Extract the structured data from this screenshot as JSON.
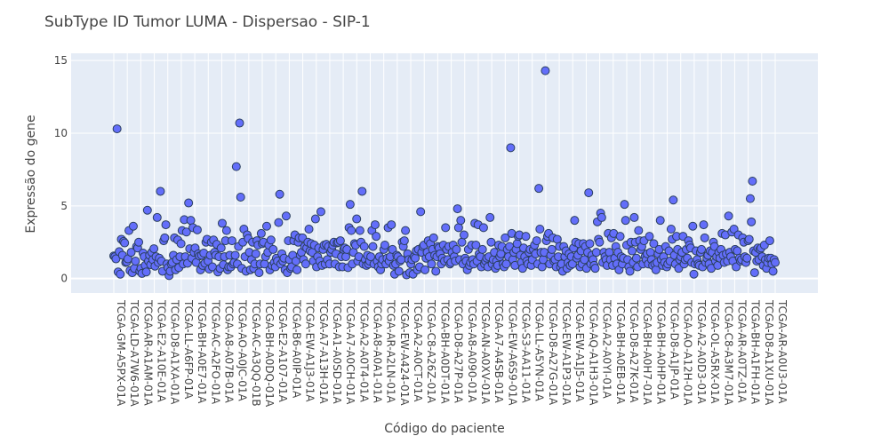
{
  "chart_data": {
    "type": "scatter",
    "title": "SubType ID Tumor LUMA - Dispersao - SIP-1",
    "xlabel": "Código do paciente",
    "ylabel": "Expressão do gene",
    "ylim": [
      -1,
      15.5
    ],
    "yticks": [
      0,
      5,
      10,
      15
    ],
    "grid": true,
    "legend": "none",
    "marker_color": "#636efa",
    "marker_edge": "#2a3f5f",
    "background": "#e5ecf6",
    "x_tick_labels": [
      "TCGA-GM-A5PX-01A",
      "TCGA-LD-A7W6-01A",
      "TCGA-AR-A1AM-01A",
      "TCGA-E2-A10E-01A",
      "TCGA-D8-A1XA-01A",
      "TCGA-LL-A6FP-01A",
      "TCGA-BH-A0E7-01A",
      "TCGA-AC-A2FO-01A",
      "TCGA-A8-A07B-01A",
      "TCGA-AO-A0JC-01A",
      "TCGA-AC-A3QQ-01B",
      "TCGA-BH-A0DQ-01A",
      "TCGA-E2-A107-01A",
      "TCGA-B6-A0IP-01A",
      "TCGA-EW-A1J3-01A",
      "TCGA-A7-A13H-01A",
      "TCGA-A1-A0SD-01A",
      "TCGA-A7-A0CH-01A",
      "TCGA-A2-A0T4-01A",
      "TCGA-A8-A0A1-01A",
      "TCGA-AR-A2LN-01A",
      "TCGA-EW-A424-01A",
      "TCGA-A2-A0CT-01A",
      "TCGA-C8-A26Z-01A",
      "TCGA-BH-A0DT-01A",
      "TCGA-D8-A27P-01A",
      "TCGA-A8-A090-01A",
      "TCGA-AN-A0XV-01A",
      "TCGA-A7-A4SB-01A",
      "TCGA-EW-A6S9-01A",
      "TCGA-S3-AA11-01A",
      "TCGA-LL-A5YN-01A",
      "TCGA-D8-A27G-01A",
      "TCGA-EW-A1P3-01A",
      "TCGA-EW-A1J5-01A",
      "TCGA-AQ-A1H3-01A",
      "TCGA-A2-A0YI-01A",
      "TCGA-BH-A0EB-01A",
      "TCGA-D8-A27K-01A",
      "TCGA-BH-A0H7-01A",
      "TCGA-BH-A0HP-01A",
      "TCGA-D8-A1JP-01A",
      "TCGA-AO-A12H-01A",
      "TCGA-A2-A0D3-01A",
      "TCGA-OL-A5RX-01A",
      "TCGA-C8-A3M7-01A",
      "TCGA-AR-A0TZ-01A",
      "TCGA-BH-A1FH-01A",
      "TCGA-D8-A1XU-01A",
      "TCGA-AR-A0U3-01A"
    ],
    "y": [
      1.55,
      1.5,
      1.35,
      10.3,
      0.45,
      1.85,
      0.3,
      2.7,
      1.6,
      2.55,
      2.45,
      1.1,
      1.15,
      1.35,
      3.3,
      0.55,
      1.8,
      0.4,
      3.6,
      0.7,
      1.2,
      2.2,
      2.1,
      2.5,
      0.5,
      0.7,
      0.35,
      1.75,
      1.5,
      0.9,
      0.45,
      4.7,
      1.2,
      1.6,
      0.95,
      1.8,
      1.3,
      2.05,
      0.85,
      1.5,
      4.2,
      1.1,
      1.4,
      6.0,
      1.2,
      0.5,
      2.6,
      2.8,
      3.7,
      1.0,
      0.75,
      0.2,
      0.5,
      1.0,
      1.1,
      1.6,
      2.8,
      0.6,
      1.3,
      2.65,
      0.75,
      1.5,
      2.4,
      3.3,
      1.0,
      4.05,
      1.5,
      3.2,
      1.05,
      5.2,
      2.05,
      4.0,
      1.4,
      3.5,
      1.8,
      2.1,
      1.1,
      3.35,
      1.7,
      1.55,
      0.6,
      1.6,
      0.9,
      1.75,
      1.05,
      2.5,
      2.7,
      1.2,
      0.65,
      1.6,
      2.5,
      0.8,
      2.65,
      1.8,
      1.6,
      2.35,
      0.45,
      1.5,
      0.7,
      2.1,
      3.8,
      0.95,
      1.5,
      2.6,
      3.3,
      0.6,
      0.8,
      1.6,
      0.8,
      2.6,
      1.0,
      1.1,
      1.6,
      7.7,
      1.0,
      2.2,
      10.7,
      5.6,
      0.7,
      2.5,
      3.4,
      1.5,
      0.5,
      3.0,
      2.75,
      1.8,
      0.6,
      1.3,
      2.5,
      0.7,
      1.0,
      1.7,
      2.6,
      2.3,
      0.4,
      1.0,
      3.1,
      2.4,
      2.5,
      1.0,
      1.5,
      3.6,
      1.8,
      2.3,
      0.6,
      2.65,
      0.9,
      2.0,
      1.1,
      0.8,
      1.4,
      1.2,
      3.85,
      5.8,
      1.0,
      1.7,
      1.2,
      1.4,
      0.6,
      4.3,
      0.4,
      2.6,
      1.3,
      0.7,
      0.8,
      1.6,
      2.6,
      3.0,
      1.2,
      0.6,
      2.5,
      2.8,
      1.6,
      1.8,
      2.8,
      1.3,
      2.2,
      1.0,
      2.1,
      2.5,
      3.4,
      1.9,
      2.4,
      1.8,
      1.2,
      2.3,
      4.1,
      0.8,
      1.5,
      2.1,
      1.2,
      4.6,
      0.9,
      2.0,
      2.3,
      1.0,
      2.35,
      1.3,
      2.2,
      1.0,
      1.8,
      2.0,
      2.3,
      2.5,
      1.0,
      1.7,
      2.45,
      2.5,
      0.8,
      2.6,
      1.5,
      0.8,
      2.0,
      2.1,
      1.5,
      2.0,
      0.75,
      3.5,
      5.1,
      3.3,
      1.0,
      1.8,
      2.4,
      2.3,
      4.1,
      1.2,
      1.5,
      3.3,
      2.5,
      6.0,
      1.0,
      2.2,
      1.3,
      0.9,
      1.6,
      1.0,
      1.2,
      1.5,
      3.3,
      2.2,
      1.0,
      3.7,
      2.9,
      1.2,
      0.8,
      1.5,
      0.6,
      1.0,
      1.3,
      2.0,
      2.3,
      1.0,
      1.4,
      3.5,
      1.2,
      1.5,
      3.7,
      2.0,
      0.9,
      0.3,
      1.0,
      1.6,
      1.5,
      0.5,
      1.2,
      1.3,
      2.5,
      2.2,
      2.6,
      3.3,
      0.25,
      1.7,
      1.3,
      0.4,
      1.0,
      1.3,
      0.3,
      1.5,
      1.4,
      1.9,
      0.6,
      2.0,
      0.8,
      4.6,
      1.8,
      2.2,
      2.3,
      0.6,
      1.4,
      1.8,
      2.6,
      1.5,
      2.4,
      1.0,
      2.0,
      2.8,
      1.6,
      0.5,
      1.5,
      2.2,
      2.1,
      1.7,
      1.0,
      1.4,
      2.3,
      1.2,
      3.5,
      2.0,
      1.3,
      2.2,
      1.0,
      1.1,
      1.8,
      2.3,
      1.5,
      1.2,
      2.0,
      4.8,
      3.5,
      1.3,
      4.0,
      2.5,
      1.0,
      3.0,
      1.4,
      1.2,
      0.6,
      2.0,
      0.9,
      1.1,
      2.3,
      1.3,
      1.0,
      3.8,
      2.3,
      1.2,
      3.7,
      1.7,
      1.5,
      0.8,
      2.0,
      3.5,
      1.0,
      1.2,
      1.4,
      0.8,
      1.5,
      4.2,
      2.5,
      1.0,
      1.3,
      1.8,
      0.7,
      1.2,
      0.9,
      2.3,
      1.5,
      1.7,
      2.2,
      1.0,
      0.8,
      2.8,
      1.0,
      2.0,
      1.5,
      2.2,
      9.0,
      3.1,
      1.3,
      1.8,
      0.9,
      2.0,
      2.4,
      2.9,
      3.0,
      1.6,
      1.1,
      0.7,
      2.1,
      1.5,
      2.9,
      1.2,
      1.0,
      1.8,
      2.0,
      0.9,
      1.3,
      2.0,
      2.3,
      1.7,
      2.6,
      1.0,
      6.2,
      3.4,
      1.8,
      0.8,
      1.3,
      1.8,
      14.3,
      2.6,
      2.9,
      3.1,
      1.0,
      1.6,
      2.0,
      2.8,
      1.2,
      1.3,
      0.8,
      2.7,
      1.5,
      2.2,
      0.8,
      1.0,
      0.5,
      2.2,
      1.5,
      1.9,
      0.7,
      1.1,
      1.7,
      0.9,
      1.5,
      1.0,
      2.1,
      4.0,
      2.5,
      1.4,
      1.6,
      2.4,
      0.8,
      1.9,
      1.0,
      2.4,
      1.3,
      2.2,
      0.7,
      1.8,
      5.9,
      2.4,
      1.0,
      1.6,
      1.3,
      0.9,
      0.7,
      1.8,
      3.9,
      2.7,
      2.5,
      4.5,
      4.2,
      1.1,
      1.8,
      1.5,
      1.3,
      0.9,
      3.1,
      1.8,
      1.3,
      2.8,
      0.9,
      3.1,
      1.4,
      2.2,
      1.0,
      1.8,
      0.6,
      2.9,
      1.5,
      1.0,
      1.4,
      5.1,
      4.0,
      2.3,
      1.3,
      0.8,
      0.5,
      2.5,
      1.9,
      1.1,
      4.2,
      2.5,
      1.4,
      0.8,
      3.3,
      2.6,
      2.0,
      2.2,
      1.0,
      2.6,
      1.5,
      1.3,
      1.7,
      1.0,
      2.9,
      1.8,
      1.3,
      0.9,
      2.4,
      1.0,
      0.6,
      1.1,
      1.7,
      2.0,
      4.0,
      1.3,
      0.9,
      1.5,
      1.1,
      2.2,
      0.8,
      1.0,
      1.9,
      1.2,
      3.4,
      2.7,
      5.4,
      1.6,
      1.0,
      2.9,
      2.0,
      0.7,
      1.3,
      1.5,
      1.8,
      2.9,
      1.0,
      1.3,
      2.0,
      1.4,
      2.6,
      2.3,
      2.1,
      1.1,
      3.6,
      0.3,
      1.0,
      1.9,
      1.3,
      1.0,
      0.9,
      1.8,
      2.0,
      0.8,
      3.7,
      2.8,
      1.1,
      1.4,
      1.6,
      1.0,
      1.9,
      0.7,
      1.8,
      2.5,
      2.2,
      1.2,
      1.5,
      0.9,
      1.8,
      1.4,
      2.0,
      3.1,
      1.6,
      1.1,
      3.0,
      1.7,
      1.2,
      4.3,
      1.8,
      1.5,
      3.2,
      1.2,
      3.4,
      2.0,
      0.8,
      1.9,
      3.0,
      1.4,
      1.2,
      1.3,
      2.8,
      2.5,
      1.5,
      1.1,
      1.4,
      2.6,
      2.7,
      5.5,
      3.9,
      6.7,
      1.9,
      0.4,
      1.8,
      1.2,
      2.1,
      1.3,
      2.0,
      2.1,
      1.5,
      0.9,
      2.3,
      1.3,
      0.7,
      1.1,
      1.4,
      2.6,
      1.4,
      1.0,
      0.5,
      1.3,
      1.1
    ]
  }
}
